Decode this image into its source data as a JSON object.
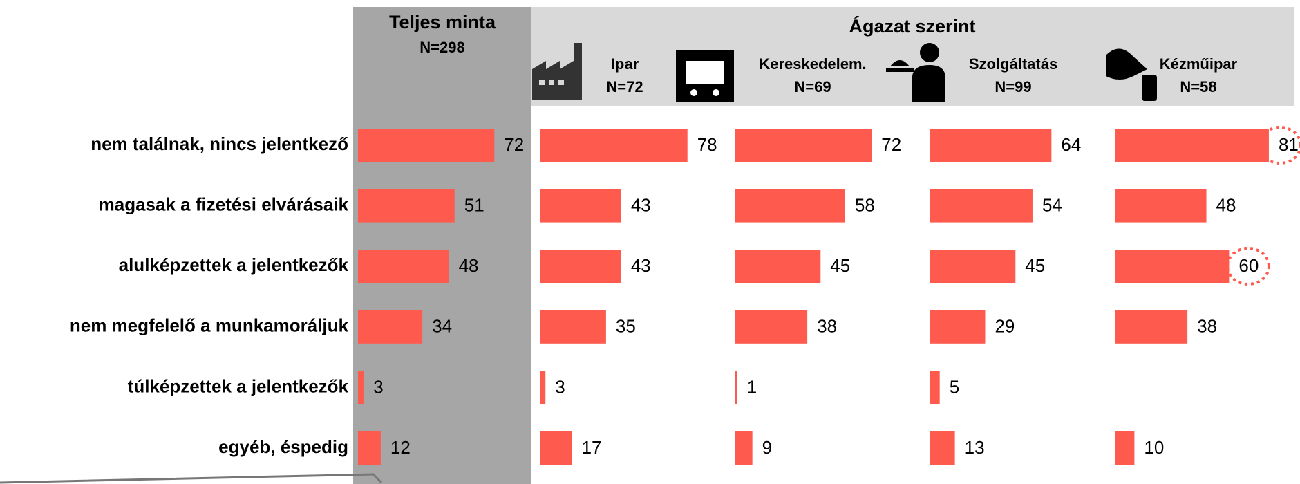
{
  "group_title": "Ágazat szerint",
  "chart_data": [
    {
      "type": "hbar",
      "title": "Teljes minta",
      "subtitle": "N=298",
      "color": "#ff5a4e",
      "categories": [
        "nem találnak, nincs jelentkező",
        "magasak a fizetési elvárásaik",
        "alulképzettek a jelentkezők",
        "nem megfelelő a munkamoráljuk",
        "túlképzettek a jelentkezők",
        "egyéb, éspedig"
      ],
      "values": [
        72,
        51,
        48,
        34,
        3,
        12
      ]
    },
    {
      "type": "hbar",
      "title": "Ipar",
      "subtitle": "N=72",
      "color": "#ff5a4e",
      "values": [
        78,
        43,
        43,
        35,
        3,
        17
      ]
    },
    {
      "type": "hbar",
      "title": "Kereskedelem.",
      "subtitle": "N=69",
      "color": "#ff5a4e",
      "values": [
        72,
        58,
        45,
        38,
        1,
        9
      ]
    },
    {
      "type": "hbar",
      "title": "Szolgáltatás",
      "subtitle": "N=99",
      "color": "#ff5a4e",
      "values": [
        64,
        54,
        45,
        29,
        5,
        13
      ]
    },
    {
      "type": "hbar",
      "title": "Kézműipar",
      "subtitle": "N=58",
      "color": "#ff5a4e",
      "values": [
        81,
        48,
        60,
        38,
        null,
        10
      ]
    }
  ]
}
